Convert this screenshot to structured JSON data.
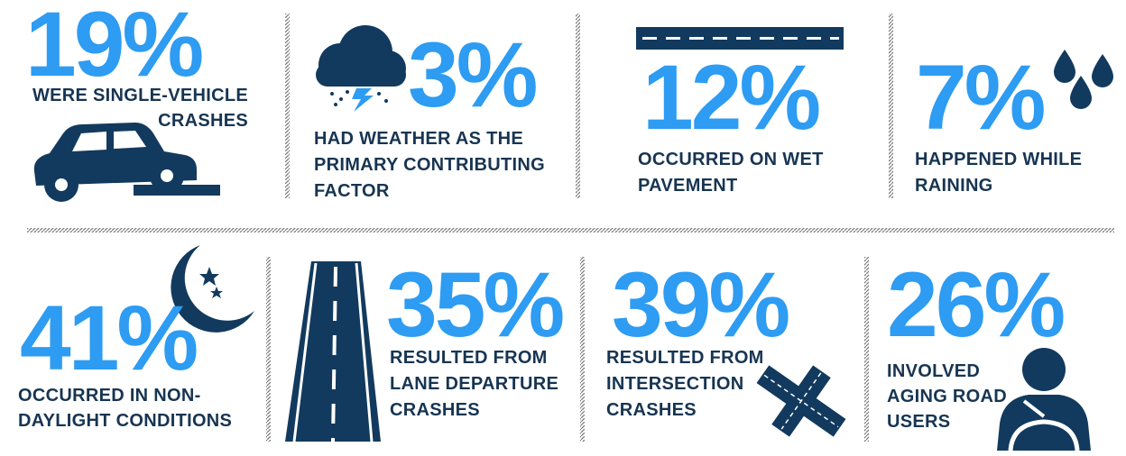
{
  "stats": [
    {
      "value": "19%",
      "lines": [
        "WERE SINGLE-VEHICLE",
        "CRASHES"
      ]
    },
    {
      "value": "3%",
      "lines": [
        "HAD WEATHER AS THE",
        "PRIMARY CONTRIBUTING",
        "FACTOR"
      ]
    },
    {
      "value": "12%",
      "lines": [
        "OCCURRED ON WET",
        "PAVEMENT"
      ]
    },
    {
      "value": "7%",
      "lines": [
        "HAPPENED WHILE",
        "RAINING"
      ]
    },
    {
      "value": "41%",
      "lines": [
        "OCCURRED IN NON-",
        "DAYLIGHT CONDITIONS"
      ]
    },
    {
      "value": "35%",
      "lines": [
        "RESULTED FROM",
        "LANE DEPARTURE",
        "CRASHES"
      ]
    },
    {
      "value": "39%",
      "lines": [
        "RESULTED FROM",
        "INTERSECTION",
        "CRASHES"
      ]
    },
    {
      "value": "26%",
      "lines": [
        "INVOLVED",
        "AGING ROAD",
        "USERS"
      ]
    }
  ]
}
